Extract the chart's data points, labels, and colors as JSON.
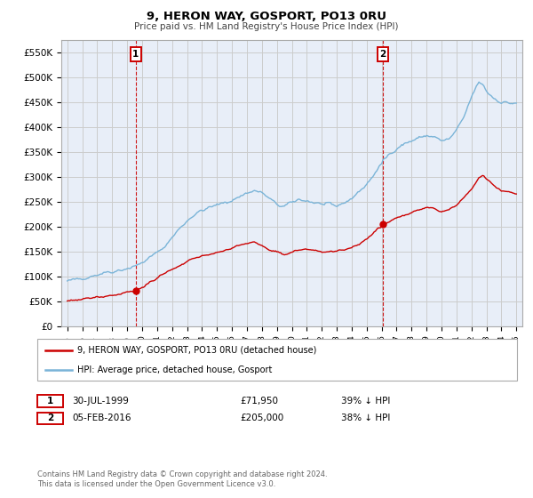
{
  "title": "9, HERON WAY, GOSPORT, PO13 0RU",
  "subtitle": "Price paid vs. HM Land Registry's House Price Index (HPI)",
  "ylim": [
    0,
    575000
  ],
  "yticks": [
    0,
    50000,
    100000,
    150000,
    200000,
    250000,
    300000,
    350000,
    400000,
    450000,
    500000,
    550000
  ],
  "ytick_labels": [
    "£0",
    "£50K",
    "£100K",
    "£150K",
    "£200K",
    "£250K",
    "£300K",
    "£350K",
    "£400K",
    "£450K",
    "£500K",
    "£550K"
  ],
  "xlim_left": 1994.6,
  "xlim_right": 2025.4,
  "sale1_x": 1999.58,
  "sale1_y": 71950,
  "sale2_x": 2016.09,
  "sale2_y": 205000,
  "sale1_date": "30-JUL-1999",
  "sale1_price": "£71,950",
  "sale1_hpi": "39% ↓ HPI",
  "sale2_date": "05-FEB-2016",
  "sale2_price": "£205,000",
  "sale2_hpi": "38% ↓ HPI",
  "hpi_color": "#7ab4d8",
  "price_color": "#cc0000",
  "bg_color": "#e8eef8",
  "grid_color": "#cccccc",
  "legend_label_red": "9, HERON WAY, GOSPORT, PO13 0RU (detached house)",
  "legend_label_blue": "HPI: Average price, detached house, Gosport",
  "footnote": "Contains HM Land Registry data © Crown copyright and database right 2024.\nThis data is licensed under the Open Government Licence v3.0."
}
